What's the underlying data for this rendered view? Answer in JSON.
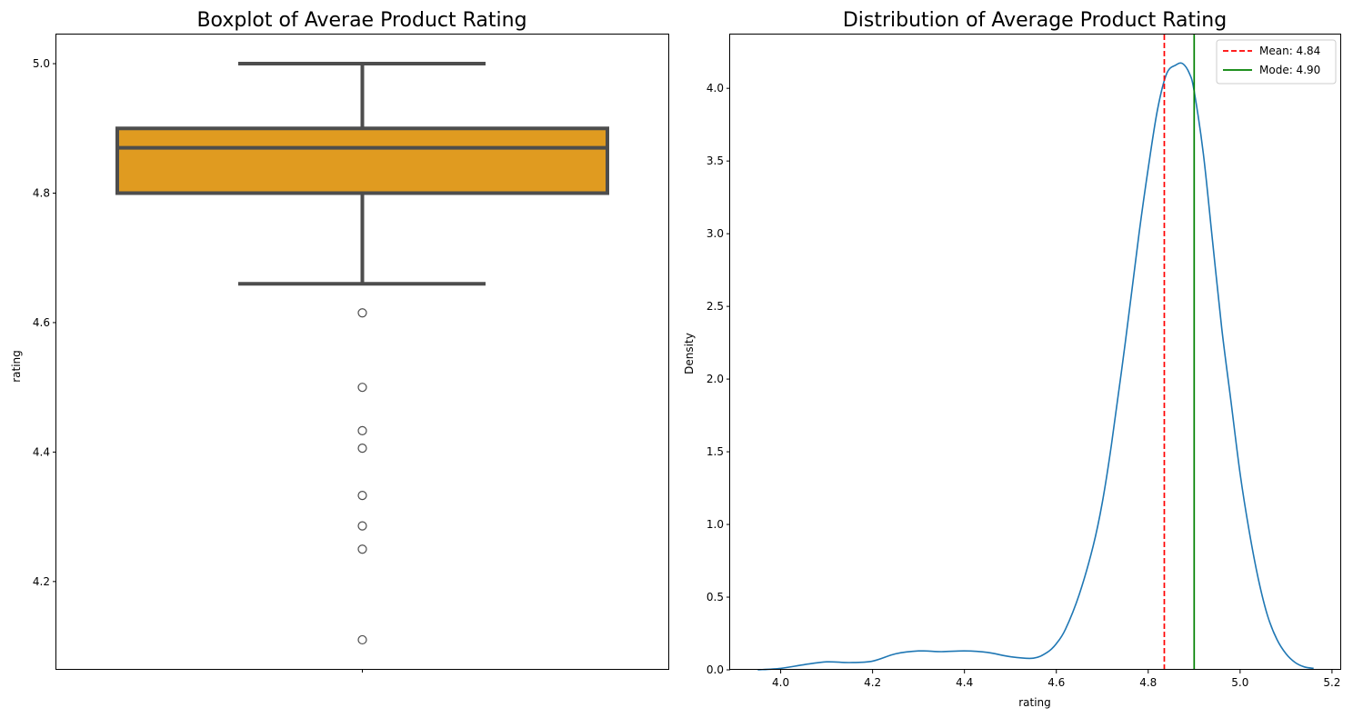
{
  "chart_data": [
    {
      "type": "box",
      "title": "Boxplot of Averae Product Rating",
      "ylabel": "rating",
      "xlabel": "",
      "ylim": [
        4.065,
        5.045
      ],
      "yticks": [
        4.2,
        4.4,
        4.6,
        4.8,
        5.0
      ],
      "ytick_labels": [
        "4.2",
        "4.4",
        "4.6",
        "4.8",
        "5.0"
      ],
      "box": {
        "min_whisker": 4.66,
        "q1": 4.8,
        "median": 4.87,
        "q3": 4.9,
        "max_whisker": 5.0
      },
      "outliers": [
        4.615,
        4.5,
        4.433,
        4.406,
        4.333,
        4.286,
        4.25,
        4.11
      ],
      "colors": {
        "box_fill": "#e09b20",
        "box_edge": "#4d4d4d",
        "outlier_edge": "#4d4d4d"
      }
    },
    {
      "type": "line",
      "title": "Distribution of Average Product Rating",
      "xlabel": "rating",
      "ylabel": "Density",
      "xlim": [
        3.89,
        5.22
      ],
      "ylim": [
        0,
        4.37
      ],
      "xticks": [
        4.0,
        4.2,
        4.4,
        4.6,
        4.8,
        5.0,
        5.2
      ],
      "xtick_labels": [
        "4.0",
        "4.2",
        "4.4",
        "4.6",
        "4.8",
        "5.0",
        "5.2"
      ],
      "yticks": [
        0,
        0.5,
        1.0,
        1.5,
        2.0,
        2.5,
        3.0,
        3.5,
        4.0
      ],
      "ytick_labels": [
        "0.0",
        "0.5",
        "1.0",
        "1.5",
        "2.0",
        "2.5",
        "3.0",
        "3.5",
        "4.0"
      ],
      "series": [
        {
          "x": [
            3.95,
            4.0,
            4.05,
            4.1,
            4.15,
            4.2,
            4.25,
            4.3,
            4.35,
            4.4,
            4.45,
            4.5,
            4.55,
            4.58,
            4.6,
            4.62,
            4.65,
            4.68,
            4.7,
            4.72,
            4.75,
            4.78,
            4.8,
            4.82,
            4.84,
            4.86,
            4.875,
            4.89,
            4.9,
            4.92,
            4.94,
            4.96,
            4.98,
            5.0,
            5.02,
            5.04,
            5.06,
            5.08,
            5.1,
            5.12,
            5.14,
            5.16
          ],
          "values": [
            0.0,
            0.01,
            0.035,
            0.055,
            0.05,
            0.06,
            0.11,
            0.13,
            0.125,
            0.13,
            0.12,
            0.09,
            0.08,
            0.12,
            0.18,
            0.28,
            0.52,
            0.85,
            1.15,
            1.55,
            2.25,
            3.0,
            3.45,
            3.85,
            4.1,
            4.16,
            4.17,
            4.1,
            3.98,
            3.55,
            2.95,
            2.35,
            1.85,
            1.35,
            0.95,
            0.62,
            0.37,
            0.21,
            0.11,
            0.05,
            0.02,
            0.01
          ],
          "color": "#1f77b4"
        }
      ],
      "reference_lines": [
        {
          "label": "Mean: 4.84",
          "x": 4.835,
          "color": "#ff0000",
          "style": "dashed"
        },
        {
          "label": "Mode: 4.90",
          "x": 4.9,
          "color": "#008000",
          "style": "solid"
        }
      ],
      "legend_position": "top-right"
    }
  ]
}
